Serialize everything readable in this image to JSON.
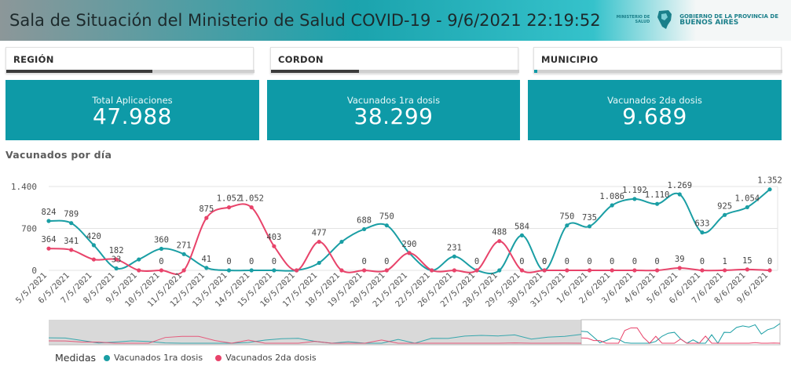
{
  "header": {
    "title": "Sala de Situación del Ministerio de Salud COVID-19 - 9/6/2021 22:19:52",
    "logo_left": "MINISTERIO DE SALUD",
    "logo_right_small": "GOBIERNO DE LA PROVINCIA DE",
    "logo_right_big": "BUENOS AIRES"
  },
  "slicers": [
    {
      "label": "REGIÓN"
    },
    {
      "label": "CORDON"
    },
    {
      "label": "MUNICIPIO"
    }
  ],
  "kpis": [
    {
      "label": "Total Aplicaciones",
      "value": "47.988"
    },
    {
      "label": "Vacunados 1ra dosis",
      "value": "38.299"
    },
    {
      "label": "Vacunados 2da dosis",
      "value": "9.689"
    }
  ],
  "chart_title": "Vacunados por día",
  "legend": {
    "title": "Medidas",
    "items": [
      "Vacunados 1ra dosis",
      "Vacunados 2da dosis"
    ]
  },
  "colors": {
    "header_accent": "#1ba3ad",
    "kpi_bg": "#0e9aa7",
    "series1": "#1a9ea4",
    "series2": "#e8436a"
  },
  "chart_data": {
    "type": "line",
    "title": "Vacunados por día",
    "xlabel": "",
    "ylabel": "",
    "ylim": [
      0,
      1400
    ],
    "y_ticks": [
      0,
      700,
      1400
    ],
    "y_tick_labels": [
      "0",
      "700",
      "1.400"
    ],
    "grid": true,
    "legend_position": "bottom-left",
    "categories": [
      "5/5/2021",
      "6/5/2021",
      "7/5/2021",
      "8/5/2021",
      "9/5/2021",
      "10/5/2021",
      "11/5/2021",
      "12/5/2021",
      "13/5/2021",
      "14/5/2021",
      "15/5/2021",
      "16/5/2021",
      "17/5/2021",
      "18/5/2021",
      "19/5/2021",
      "20/5/2021",
      "21/5/2021",
      "22/5/2021",
      "26/5/2021",
      "27/5/2021",
      "28/5/2021",
      "29/5/2021",
      "30/5/2021",
      "31/5/2021",
      "1/6/2021",
      "2/6/2021",
      "3/6/2021",
      "4/6/2021",
      "5/6/2021",
      "6/6/2021",
      "7/6/2021",
      "8/6/2021",
      "9/6/2021"
    ],
    "tick_labels": [
      "5/5/2021",
      "6/5/2021",
      "7/5/2021",
      "8/5/2021",
      "9/5/2021",
      "10/5/2021",
      "11/5/2021",
      "12/5/2021",
      "13/5/2021",
      "14/5/2021",
      "15/5/2021",
      "16/5/2021",
      "17/5/2021",
      "18/5/2021",
      "19/5/2021",
      "20/5/2021",
      "21/5/2021",
      "22/5/2021",
      "26/5/2021",
      "27/5/2021",
      "28/5/2021",
      "29/5/2021",
      "30/5/2021",
      "31/5/2021",
      "1/6/2021",
      "2/6/2021",
      "3/6/2021",
      "4/6/2021",
      "5/6/2021",
      "6/6/2021",
      "7/6/2021",
      "8/6/2021",
      "9/6/2021"
    ],
    "series": [
      {
        "name": "Vacunados 1ra dosis",
        "values": [
          824,
          789,
          420,
          33,
          182,
          360,
          271,
          41,
          0,
          0,
          0,
          0,
          125,
          477,
          688,
          750,
          290,
          0,
          231,
          0,
          0,
          584,
          0,
          750,
          735,
          1086,
          1192,
          1110,
          1269,
          633,
          925,
          1054,
          1352
        ],
        "labels": [
          "824",
          "789",
          "420",
          "33",
          "",
          "360",
          "271",
          "41",
          "0",
          "0",
          "0",
          "",
          "",
          "",
          "688",
          "750",
          "",
          "",
          "231",
          "0",
          "",
          "584",
          "0",
          "750",
          "735",
          "1.086",
          "1.192",
          "1.110",
          "1.269",
          "633",
          "925",
          "1.054",
          "1.352"
        ]
      },
      {
        "name": "Vacunados 2da dosis",
        "values": [
          364,
          341,
          182,
          182,
          0,
          0,
          0,
          875,
          1052,
          1052,
          403,
          0,
          477,
          0,
          0,
          0,
          290,
          0,
          0,
          0,
          488,
          0,
          0,
          0,
          0,
          0,
          0,
          0,
          39,
          0,
          1,
          15,
          0
        ],
        "labels": [
          "364",
          "341",
          "",
          "182",
          "",
          "0",
          "",
          "875",
          "1.052",
          "1.052",
          "403",
          "",
          "477",
          "",
          "0",
          "0",
          "290",
          "",
          "",
          "",
          "488",
          "0",
          "0",
          "0",
          "0",
          "0",
          "0",
          "0",
          "39",
          "0",
          "1",
          "15",
          "0"
        ]
      }
    ]
  }
}
